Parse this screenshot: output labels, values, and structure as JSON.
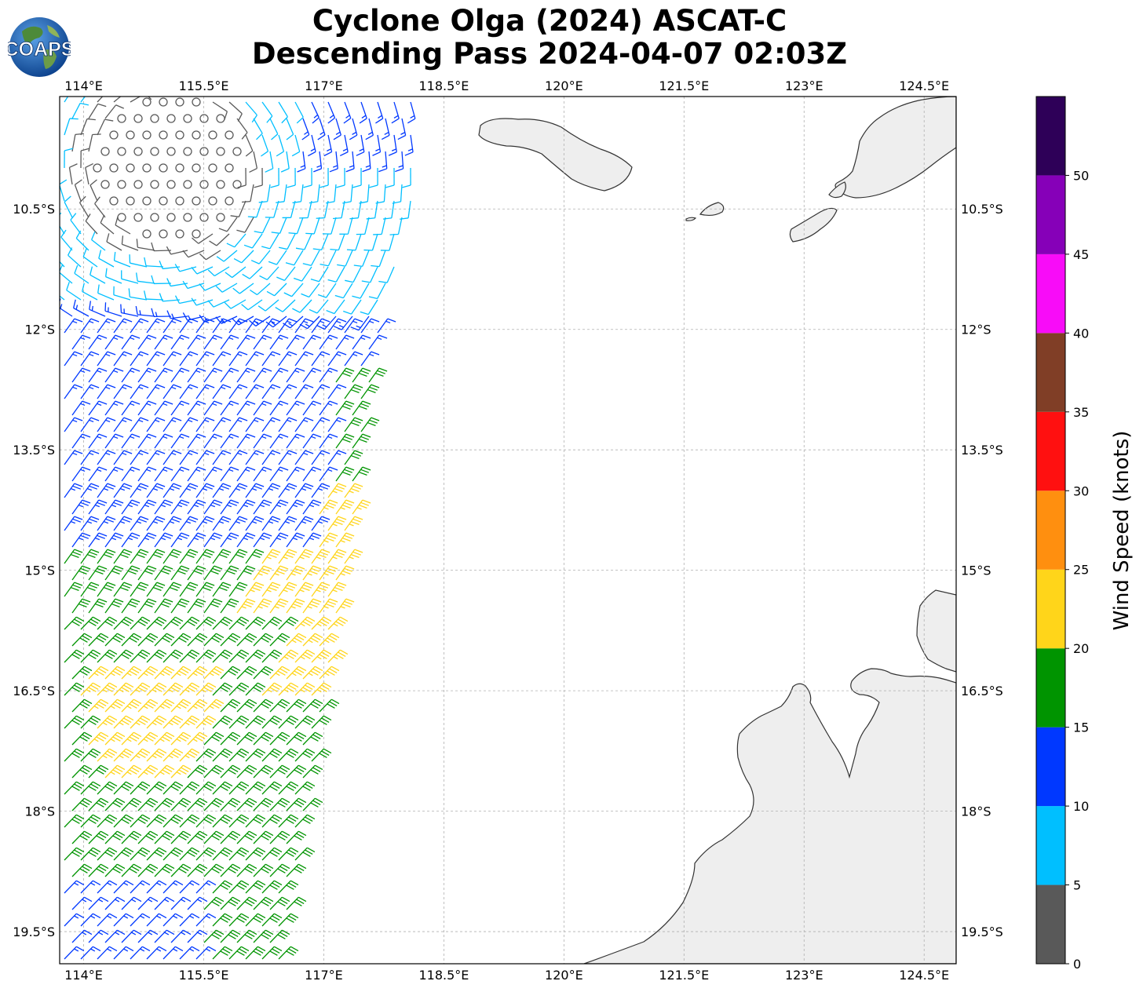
{
  "title": {
    "line1": "Cyclone Olga (2024) ASCAT-C",
    "line2": "Descending Pass 2024-04-07 02:03Z"
  },
  "logo": {
    "text": "COAPS",
    "icon": "globe-logo-icon"
  },
  "map": {
    "lon_range": [
      113.7,
      124.9
    ],
    "lat_range": [
      -9.1,
      -19.9
    ],
    "x_ticks": [
      {
        "value": 114.0,
        "label": "114°E"
      },
      {
        "value": 115.5,
        "label": "115.5°E"
      },
      {
        "value": 117.0,
        "label": "117°E"
      },
      {
        "value": 118.5,
        "label": "118.5°E"
      },
      {
        "value": 120.0,
        "label": "120°E"
      },
      {
        "value": 121.5,
        "label": "121.5°E"
      },
      {
        "value": 123.0,
        "label": "123°E"
      },
      {
        "value": 124.5,
        "label": "124.5°E"
      }
    ],
    "y_ticks": [
      {
        "value": -10.5,
        "label": "10.5°S"
      },
      {
        "value": -12.0,
        "label": "12°S"
      },
      {
        "value": -13.5,
        "label": "13.5°S"
      },
      {
        "value": -15.0,
        "label": "15°S"
      },
      {
        "value": -16.5,
        "label": "16.5°S"
      },
      {
        "value": -18.0,
        "label": "18°S"
      },
      {
        "value": -19.5,
        "label": "19.5°S"
      }
    ],
    "grid": true,
    "colors": {
      "land": "#eeeeee",
      "coast": "#333333",
      "grid": "#b0b0b0"
    }
  },
  "colorbar": {
    "label": "Wind Speed (knots)",
    "range": [
      0,
      55
    ],
    "bins": [
      {
        "from": 0,
        "to": 5,
        "color": "#595959"
      },
      {
        "from": 5,
        "to": 10,
        "color": "#00bfff"
      },
      {
        "from": 10,
        "to": 15,
        "color": "#0038ff"
      },
      {
        "from": 15,
        "to": 20,
        "color": "#009400"
      },
      {
        "from": 20,
        "to": 25,
        "color": "#ffd51a"
      },
      {
        "from": 25,
        "to": 30,
        "color": "#ff8f0f"
      },
      {
        "from": 30,
        "to": 35,
        "color": "#ff1010"
      },
      {
        "from": 35,
        "to": 40,
        "color": "#803e26"
      },
      {
        "from": 40,
        "to": 45,
        "color": "#f80cf8"
      },
      {
        "from": 45,
        "to": 50,
        "color": "#8600b8"
      },
      {
        "from": 50,
        "to": 55,
        "color": "#2e0058"
      }
    ],
    "ticks": [
      "0",
      "5",
      "10",
      "15",
      "20",
      "25",
      "30",
      "35",
      "40",
      "45",
      "50"
    ]
  }
}
